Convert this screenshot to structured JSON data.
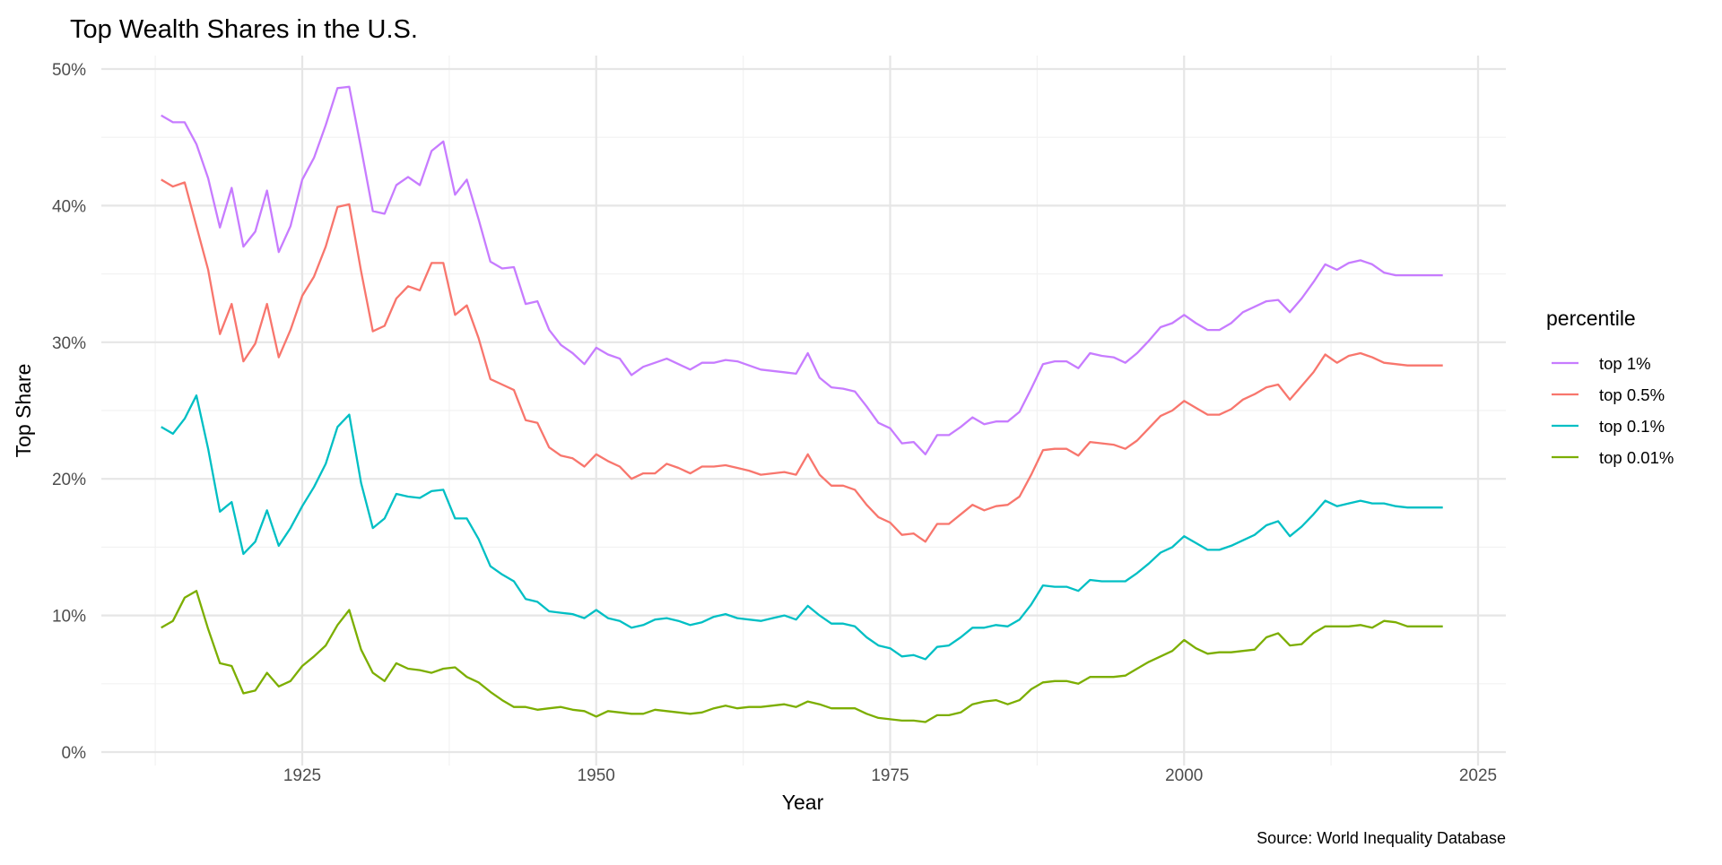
{
  "chart_data": {
    "type": "line",
    "title": "Top Wealth Shares in the U.S.",
    "xlabel": "Year",
    "ylabel": "Top Share",
    "caption": "Source: World Inequality Database",
    "legend_title": "percentile",
    "legend_position": "right",
    "grid": true,
    "xlim": [
      1908,
      2027
    ],
    "ylim": [
      0,
      0.5
    ],
    "x_ticks": [
      1925,
      1950,
      1975,
      2000,
      2025
    ],
    "x_tick_labels": [
      "1925",
      "1950",
      "1975",
      "2000",
      "2025"
    ],
    "y_ticks": [
      0,
      0.1,
      0.2,
      0.3,
      0.4,
      0.5
    ],
    "y_tick_labels": [
      "0%",
      "10%",
      "20%",
      "30%",
      "40%",
      "50%"
    ],
    "x_start": 1913,
    "series": [
      {
        "name": "top 1%",
        "color": "#C77CFF",
        "values": [
          46.6,
          46.1,
          46.1,
          44.5,
          42.0,
          38.4,
          41.3,
          37.0,
          38.1,
          41.1,
          36.6,
          38.5,
          41.9,
          43.5,
          45.9,
          48.6,
          48.7,
          44.2,
          39.6,
          39.4,
          41.5,
          42.1,
          41.5,
          44.0,
          44.7,
          40.8,
          41.9,
          39.0,
          35.9,
          35.4,
          35.5,
          32.8,
          33.0,
          30.9,
          29.8,
          29.2,
          28.4,
          29.6,
          29.1,
          28.8,
          27.6,
          28.2,
          28.5,
          28.8,
          28.4,
          28.0,
          28.5,
          28.5,
          28.7,
          28.6,
          28.3,
          28.0,
          27.9,
          27.8,
          27.7,
          29.2,
          27.4,
          26.7,
          26.6,
          26.4,
          25.3,
          24.1,
          23.7,
          22.6,
          22.7,
          21.8,
          23.2,
          23.2,
          23.8,
          24.5,
          24.0,
          24.2,
          24.2,
          24.9,
          26.6,
          28.4,
          28.6,
          28.6,
          28.1,
          29.2,
          29.0,
          28.9,
          28.5,
          29.2,
          30.1,
          31.1,
          31.4,
          32.0,
          31.4,
          30.9,
          30.9,
          31.4,
          32.2,
          32.6,
          33.0,
          33.1,
          32.2,
          33.2,
          34.4,
          35.7,
          35.3,
          35.8,
          36.0,
          35.7,
          35.1,
          34.9,
          34.9,
          34.9,
          34.9,
          34.9
        ]
      },
      {
        "name": "top 0.5%",
        "color": "#F8766D",
        "values": [
          41.9,
          41.4,
          41.7,
          38.5,
          35.3,
          30.6,
          32.8,
          28.6,
          29.9,
          32.8,
          28.9,
          30.9,
          33.4,
          34.8,
          37.0,
          39.9,
          40.1,
          35.2,
          30.8,
          31.2,
          33.2,
          34.1,
          33.8,
          35.8,
          35.8,
          32.0,
          32.7,
          30.3,
          27.3,
          26.9,
          26.5,
          24.3,
          24.1,
          22.3,
          21.7,
          21.5,
          20.9,
          21.8,
          21.3,
          20.9,
          20.0,
          20.4,
          20.4,
          21.1,
          20.8,
          20.4,
          20.9,
          20.9,
          21.0,
          20.8,
          20.6,
          20.3,
          20.4,
          20.5,
          20.3,
          21.8,
          20.3,
          19.5,
          19.5,
          19.2,
          18.1,
          17.2,
          16.8,
          15.9,
          16.0,
          15.4,
          16.7,
          16.7,
          17.4,
          18.1,
          17.7,
          18.0,
          18.1,
          18.7,
          20.3,
          22.1,
          22.2,
          22.2,
          21.7,
          22.7,
          22.6,
          22.5,
          22.2,
          22.8,
          23.7,
          24.6,
          25.0,
          25.7,
          25.2,
          24.7,
          24.7,
          25.1,
          25.8,
          26.2,
          26.7,
          26.9,
          25.8,
          26.8,
          27.8,
          29.1,
          28.5,
          29.0,
          29.2,
          28.9,
          28.5,
          28.4,
          28.3,
          28.3,
          28.3,
          28.3
        ]
      },
      {
        "name": "top 0.1%",
        "color": "#00BFC4",
        "values": [
          23.8,
          23.3,
          24.4,
          26.1,
          22.2,
          17.6,
          18.3,
          14.5,
          15.4,
          17.7,
          15.1,
          16.4,
          18.0,
          19.4,
          21.1,
          23.8,
          24.7,
          19.7,
          16.4,
          17.1,
          18.9,
          18.7,
          18.6,
          19.1,
          19.2,
          17.1,
          17.1,
          15.6,
          13.6,
          13.0,
          12.5,
          11.2,
          11.0,
          10.3,
          10.2,
          10.1,
          9.8,
          10.4,
          9.8,
          9.6,
          9.1,
          9.3,
          9.7,
          9.8,
          9.6,
          9.3,
          9.5,
          9.9,
          10.1,
          9.8,
          9.7,
          9.6,
          9.8,
          10.0,
          9.7,
          10.7,
          10.0,
          9.4,
          9.4,
          9.2,
          8.4,
          7.8,
          7.6,
          7.0,
          7.1,
          6.8,
          7.7,
          7.8,
          8.4,
          9.1,
          9.1,
          9.3,
          9.2,
          9.7,
          10.8,
          12.2,
          12.1,
          12.1,
          11.8,
          12.6,
          12.5,
          12.5,
          12.5,
          13.1,
          13.8,
          14.6,
          15.0,
          15.8,
          15.3,
          14.8,
          14.8,
          15.1,
          15.5,
          15.9,
          16.6,
          16.9,
          15.8,
          16.5,
          17.4,
          18.4,
          18.0,
          18.2,
          18.4,
          18.2,
          18.2,
          18.0,
          17.9,
          17.9,
          17.9,
          17.9
        ]
      },
      {
        "name": "top 0.01%",
        "color": "#7CAE00",
        "values": [
          9.1,
          9.6,
          11.3,
          11.8,
          9.0,
          6.5,
          6.3,
          4.3,
          4.5,
          5.8,
          4.8,
          5.2,
          6.3,
          7.0,
          7.8,
          9.3,
          10.4,
          7.5,
          5.8,
          5.2,
          6.5,
          6.1,
          6.0,
          5.8,
          6.1,
          6.2,
          5.5,
          5.1,
          4.4,
          3.8,
          3.3,
          3.3,
          3.1,
          3.2,
          3.3,
          3.1,
          3.0,
          2.6,
          3.0,
          2.9,
          2.8,
          2.8,
          3.1,
          3.0,
          2.9,
          2.8,
          2.9,
          3.2,
          3.4,
          3.2,
          3.3,
          3.3,
          3.4,
          3.5,
          3.3,
          3.7,
          3.5,
          3.2,
          3.2,
          3.2,
          2.8,
          2.5,
          2.4,
          2.3,
          2.3,
          2.2,
          2.7,
          2.7,
          2.9,
          3.5,
          3.7,
          3.8,
          3.5,
          3.8,
          4.6,
          5.1,
          5.2,
          5.2,
          5.0,
          5.5,
          5.5,
          5.5,
          5.6,
          6.1,
          6.6,
          7.0,
          7.4,
          8.2,
          7.6,
          7.2,
          7.3,
          7.3,
          7.4,
          7.5,
          8.4,
          8.7,
          7.8,
          7.9,
          8.7,
          9.2,
          9.2,
          9.2,
          9.3,
          9.1,
          9.6,
          9.5,
          9.2,
          9.2,
          9.2,
          9.2
        ]
      }
    ]
  }
}
